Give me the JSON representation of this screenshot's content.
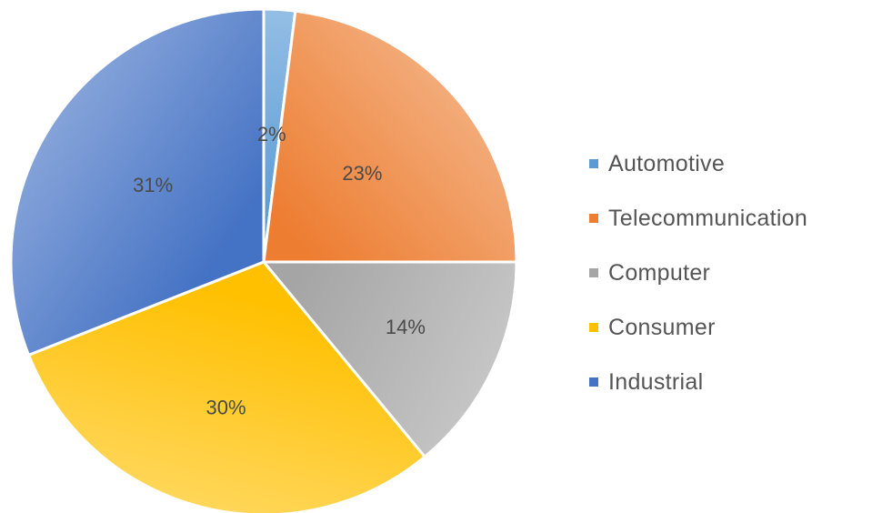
{
  "chart_data": {
    "type": "pie",
    "slices": [
      {
        "label": "Automotive",
        "value": 2,
        "value_label": "2%",
        "color": "#5b9bd5"
      },
      {
        "label": "Telecommunication",
        "value": 23,
        "value_label": "23%",
        "color": "#ed7d31"
      },
      {
        "label": "Computer",
        "value": 14,
        "value_label": "14%",
        "color": "#a5a5a5"
      },
      {
        "label": "Consumer",
        "value": 30,
        "value_label": "30%",
        "color": "#ffc000"
      },
      {
        "label": "Industrial",
        "value": 31,
        "value_label": "31%",
        "color": "#4472c4"
      }
    ],
    "start_angle": "12 o'clock",
    "direction": "clockwise",
    "legend_position": "right"
  }
}
